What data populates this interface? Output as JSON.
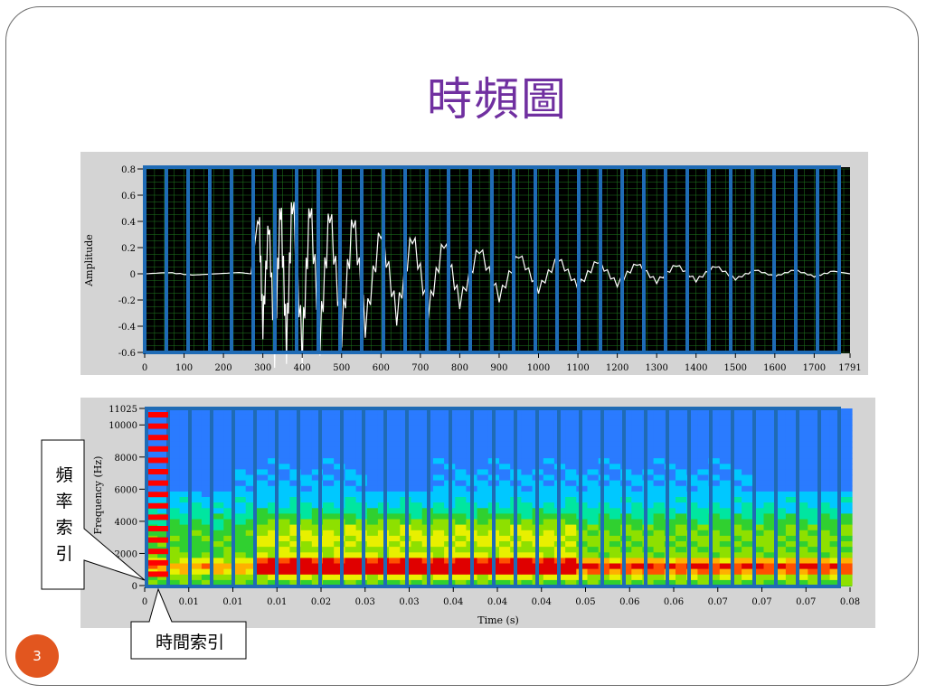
{
  "slide": {
    "title": "時頻圖",
    "page_number": "3",
    "callouts": {
      "frequency_index": [
        "頻",
        "率",
        "索",
        "引"
      ],
      "time_index": "時間索引"
    }
  },
  "colors": {
    "title": "#7030a0",
    "frame_overlay": "#1f6bb5",
    "waveform": "#ffffff",
    "plot_bg": "#000000",
    "grid": "#1f7a1f",
    "panel_bg": "#d4d4d4",
    "badge": "#e2561f",
    "freq_index_marker": "#ff0000"
  },
  "chart_data": [
    {
      "type": "line",
      "ylabel": "Amplitude",
      "xlabel": "",
      "xlim": [
        0,
        1791
      ],
      "ylim": [
        -0.6,
        0.8
      ],
      "xticks": [
        "0",
        "100",
        "200",
        "300",
        "400",
        "500",
        "600",
        "700",
        "800",
        "900",
        "1000",
        "1100",
        "1200",
        "1300",
        "1400",
        "1500",
        "1600",
        "1700",
        "1791"
      ],
      "yticks": [
        "0.8",
        "0.6",
        "0.4",
        "0.2",
        "0",
        "-0.2",
        "-0.4",
        "-0.6"
      ],
      "grid": true,
      "series": [
        {
          "x": [
            0,
            60,
            120,
            180,
            240,
            270,
            290,
            300,
            315,
            330,
            345,
            360,
            375,
            400,
            420,
            445,
            470,
            500,
            530,
            560,
            600,
            640,
            680,
            720,
            760,
            800,
            850,
            900,
            950,
            1000,
            1050,
            1100,
            1150,
            1200,
            1250,
            1300,
            1350,
            1400,
            1450,
            1500,
            1550,
            1600,
            1650,
            1700,
            1750,
            1791
          ],
          "y": [
            0.0,
            0.01,
            -0.01,
            0.0,
            0.01,
            0.0,
            0.48,
            -0.4,
            0.4,
            -0.58,
            0.55,
            -0.55,
            0.6,
            -0.58,
            0.55,
            -0.5,
            0.5,
            -0.45,
            0.45,
            -0.4,
            0.35,
            -0.32,
            0.3,
            -0.28,
            0.25,
            -0.22,
            0.2,
            -0.18,
            0.15,
            -0.12,
            0.12,
            -0.1,
            0.1,
            -0.08,
            0.08,
            -0.06,
            0.07,
            -0.05,
            0.06,
            -0.04,
            0.03,
            -0.02,
            0.03,
            -0.02,
            0.02,
            0.0
          ]
        }
      ]
    },
    {
      "type": "heatmap",
      "xlabel": "Time (s)",
      "ylabel": "Frequency (Hz)",
      "xlim": [
        0,
        0.08
      ],
      "ylim": [
        0,
        11025
      ],
      "xticks": [
        "0",
        "0.01",
        "0.01",
        "0.01",
        "0.02",
        "0.03",
        "0.03",
        "0.04",
        "0.04",
        "0.04",
        "0.05",
        "0.06",
        "0.06",
        "0.07",
        "0.07",
        "0.07",
        "0.08"
      ],
      "yticks": [
        "11025",
        "10000",
        "8000",
        "6000",
        "4000",
        "2000",
        "0"
      ],
      "grid": false
    }
  ]
}
